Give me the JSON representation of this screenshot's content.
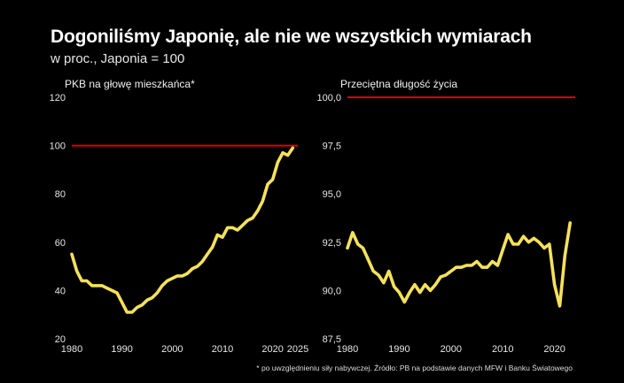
{
  "header": {
    "title": "Dogoniliśmy Japonię, ale nie we wszystkich wymiarach",
    "subtitle": "w proc., Japonia = 100"
  },
  "footnote": "* po uwzględnieniu siły nabywczej. Źródło: PB na podstawie danych MFW i Banku Światowego",
  "colors": {
    "background": "#000000",
    "series": "#f5e25a",
    "reference": "#e00000"
  },
  "chart_data": [
    {
      "type": "line",
      "title": "PKB na głowę mieszkańca*",
      "xlabel": "",
      "ylabel": "",
      "xlim": [
        1980,
        2025
      ],
      "ylim": [
        20,
        120
      ],
      "x_ticks": [
        "1980",
        "1990",
        "2000",
        "2010",
        "2020",
        "2025"
      ],
      "y_ticks": [
        "20",
        "40",
        "60",
        "80",
        "100",
        "120"
      ],
      "reference_line": 100,
      "grid": false,
      "series": [
        {
          "x": [
            1980,
            1981,
            1982,
            1983,
            1984,
            1985,
            1986,
            1987,
            1988,
            1989,
            1990,
            1991,
            1992,
            1993,
            1994,
            1995,
            1996,
            1997,
            1998,
            1999,
            2000,
            2001,
            2002,
            2003,
            2004,
            2005,
            2006,
            2007,
            2008,
            2009,
            2010,
            2011,
            2012,
            2013,
            2014,
            2015,
            2016,
            2017,
            2018,
            2019,
            2020,
            2021,
            2022,
            2023,
            2024
          ],
          "values": [
            55,
            48,
            44,
            44,
            42,
            42,
            42,
            41,
            40,
            39,
            35,
            31,
            31,
            33,
            34,
            36,
            37,
            39,
            42,
            44,
            45,
            46,
            46,
            47,
            49,
            50,
            52,
            55,
            58,
            63,
            62,
            66,
            66,
            65,
            67,
            69,
            70,
            73,
            77,
            84,
            86,
            93,
            97,
            96,
            99
          ]
        }
      ]
    },
    {
      "type": "line",
      "title": "Przeciętna długość życia",
      "xlabel": "",
      "ylabel": "",
      "xlim": [
        1980,
        2024
      ],
      "ylim": [
        87.5,
        100
      ],
      "x_ticks": [
        "1980",
        "1990",
        "2000",
        "2010",
        "2020"
      ],
      "y_ticks": [
        "87,5",
        "90,0",
        "92,5",
        "95,0",
        "97,5",
        "100,0"
      ],
      "reference_line": 100,
      "grid": false,
      "series": [
        {
          "x": [
            1980,
            1981,
            1982,
            1983,
            1984,
            1985,
            1986,
            1987,
            1988,
            1989,
            1990,
            1991,
            1992,
            1993,
            1994,
            1995,
            1996,
            1997,
            1998,
            1999,
            2000,
            2001,
            2002,
            2003,
            2004,
            2005,
            2006,
            2007,
            2008,
            2009,
            2010,
            2011,
            2012,
            2013,
            2014,
            2015,
            2016,
            2017,
            2018,
            2019,
            2020,
            2021,
            2022,
            2023
          ],
          "values": [
            92.2,
            93.0,
            92.4,
            92.2,
            91.6,
            91.0,
            90.8,
            90.4,
            91.0,
            90.2,
            89.9,
            89.4,
            89.9,
            90.3,
            89.9,
            90.3,
            90.0,
            90.3,
            90.7,
            90.8,
            91.0,
            91.2,
            91.2,
            91.3,
            91.3,
            91.5,
            91.2,
            91.2,
            91.5,
            91.3,
            92.1,
            92.9,
            92.4,
            92.4,
            92.8,
            92.5,
            92.7,
            92.5,
            92.2,
            92.4,
            90.3,
            89.2,
            91.8,
            93.5
          ]
        }
      ]
    }
  ]
}
